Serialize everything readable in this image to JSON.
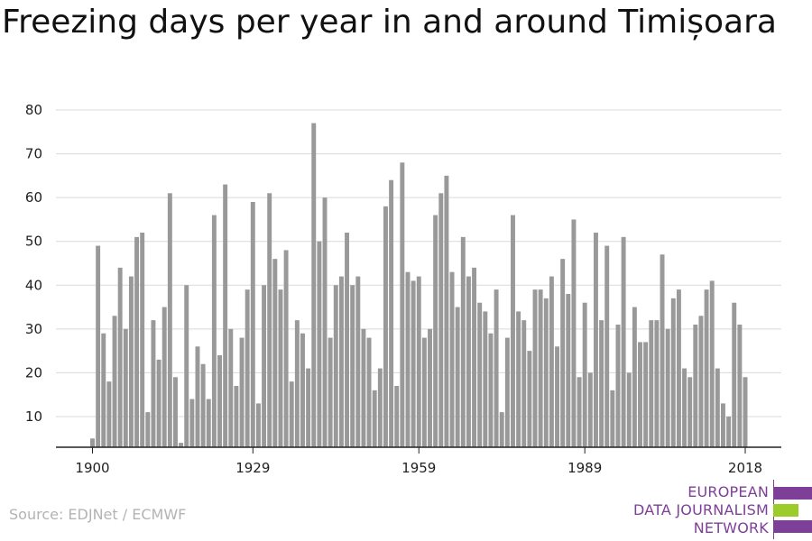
{
  "title": "Freezing days per year in and around Timișoara",
  "source": "Source: EDJNet / ECMWF",
  "logo": {
    "lines": [
      "EUROPEAN",
      "DATA JOURNALISM",
      "NETWORK"
    ],
    "colors": [
      "#7e3f98",
      "#9ccc2a",
      "#7e3f98"
    ]
  },
  "chart_data": {
    "type": "bar",
    "title": "Freezing days per year in and around Timișoara",
    "xlabel": "",
    "ylabel": "",
    "x_start": 1900,
    "x_end": 2018,
    "xticks": [
      1900,
      1929,
      1959,
      1989,
      2018
    ],
    "yticks": [
      10,
      20,
      30,
      40,
      50,
      60,
      70,
      80
    ],
    "ylim": [
      3,
      80
    ],
    "grid": true,
    "bar_color": "#999999",
    "grid_color": "#d9d9d9",
    "values": [
      5,
      49,
      29,
      18,
      33,
      44,
      30,
      42,
      51,
      52,
      11,
      32,
      23,
      35,
      61,
      19,
      4,
      40,
      14,
      26,
      22,
      14,
      56,
      24,
      63,
      30,
      17,
      28,
      39,
      59,
      13,
      40,
      61,
      46,
      39,
      48,
      18,
      32,
      29,
      21,
      77,
      50,
      60,
      28,
      40,
      42,
      52,
      40,
      42,
      30,
      28,
      16,
      21,
      58,
      64,
      17,
      68,
      43,
      41,
      42,
      28,
      30,
      56,
      61,
      65,
      43,
      35,
      51,
      42,
      44,
      36,
      34,
      29,
      39,
      11,
      28,
      56,
      34,
      32,
      25,
      39,
      39,
      37,
      42,
      26,
      46,
      38,
      55,
      19,
      36,
      20,
      52,
      32,
      49,
      16,
      31,
      51,
      20,
      35,
      27,
      27,
      32,
      32,
      47,
      30,
      37,
      39,
      21,
      19,
      31,
      33,
      39,
      41,
      21,
      13,
      10,
      36,
      31,
      19
    ]
  }
}
